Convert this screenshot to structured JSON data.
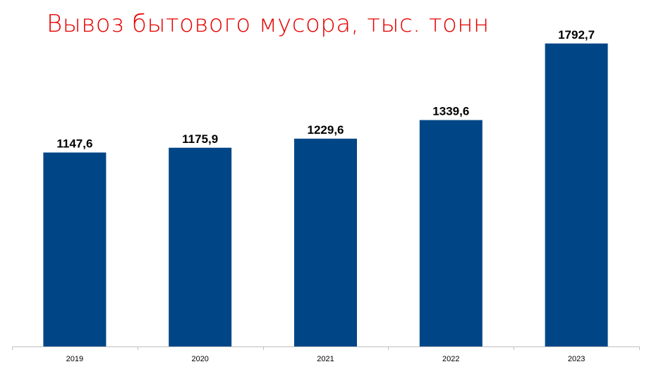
{
  "chart_data": {
    "type": "bar",
    "title": "Вывоз бытового мусора, тыс. тонн",
    "categories": [
      "2019",
      "2020",
      "2021",
      "2022",
      "2023"
    ],
    "values": [
      1147.6,
      1175.9,
      1229.6,
      1339.6,
      1792.7
    ],
    "value_labels": [
      "1147,6",
      "1175,9",
      "1229,6",
      "1339,6",
      "1792,7"
    ],
    "xlabel": "",
    "ylabel": "",
    "ylim": [
      0,
      1950
    ],
    "grid": false,
    "legend": "none",
    "colors": {
      "bar": "#004687",
      "title": "#e60000",
      "axis": "#bfbfbf"
    }
  }
}
